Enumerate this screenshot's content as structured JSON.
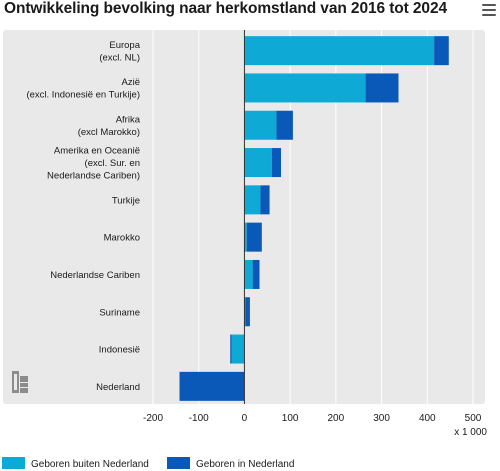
{
  "title": "Ontwikkeling bevolking naar herkomstland van 2016 tot 2024",
  "icons": {
    "menu": "hamburger-menu-icon",
    "logo": "cbs-logo-icon"
  },
  "colors": {
    "geboren_buiten": "#0fa9d6",
    "geboren_in": "#0a58b8",
    "panel": "#e9e9e9",
    "grid": "#ffffff",
    "zero_line": "#333333"
  },
  "chart_data": {
    "type": "bar",
    "orientation": "horizontal",
    "stacked": true,
    "title": "Ontwikkeling bevolking naar herkomstland van 2016 tot 2024",
    "categories": [
      "Europa\n(excl. NL)",
      "Azië\n(excl. Indonesië en Turkije)",
      "Afrika\n(excl Marokko)",
      "Amerika en Oceanië\n(excl. Sur. en\nNederlandse Cariben)",
      "Turkije",
      "Marokko",
      "Nederlandse Cariben",
      "Suriname",
      "Indonesië",
      "Nederland"
    ],
    "series": [
      {
        "name": "Geboren buiten Nederland",
        "values": [
          415,
          265,
          70,
          60,
          35,
          5,
          18,
          2,
          -28,
          0
        ]
      },
      {
        "name": "Geboren in Nederland",
        "values": [
          32,
          72,
          36,
          20,
          20,
          33,
          15,
          10,
          -3,
          -142
        ]
      }
    ],
    "xlim": [
      -200,
      500
    ],
    "xticks": [
      -200,
      -100,
      0,
      100,
      200,
      300,
      400,
      500
    ],
    "xunit": "x 1 000",
    "legend": "bottom",
    "grid": true
  }
}
